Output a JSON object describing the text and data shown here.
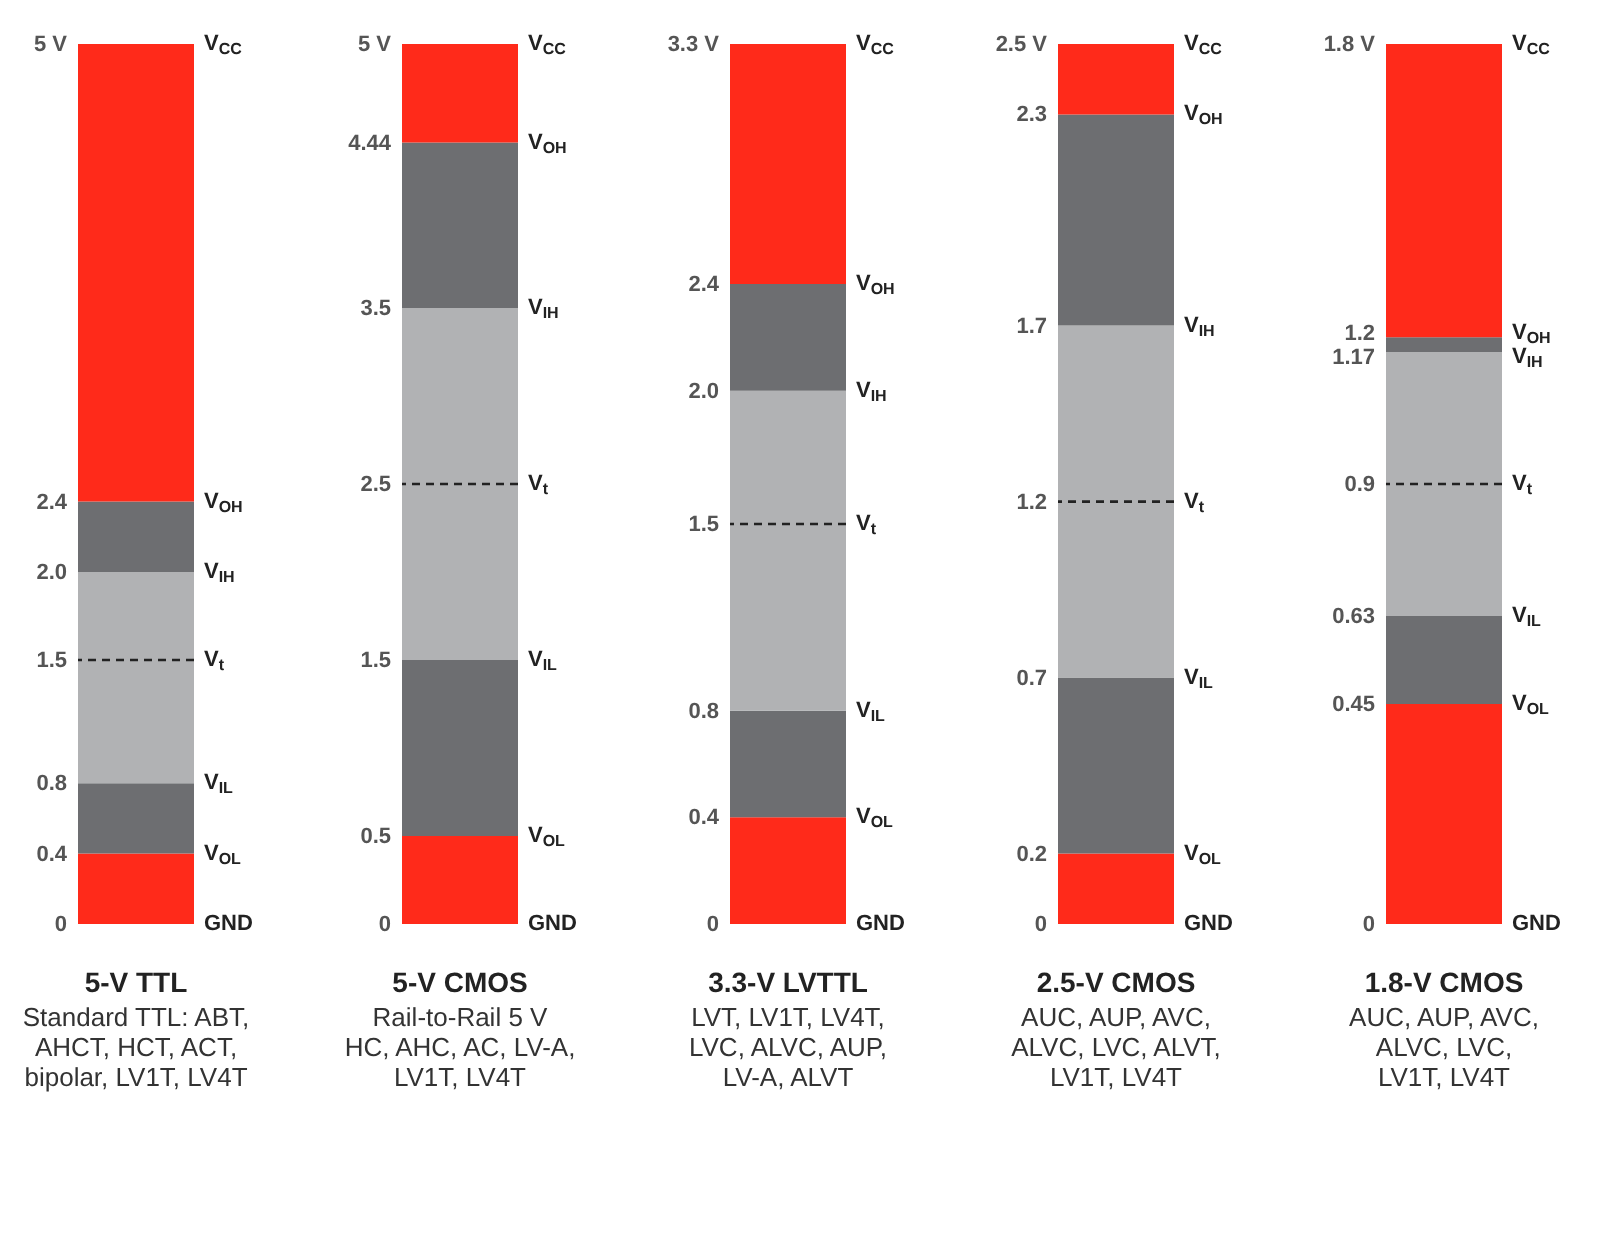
{
  "chart_data": [
    {
      "type": "bar",
      "stacked": true,
      "title": "5-V TTL",
      "subtitle": "Standard TTL: ABT,\nAHCT, HCT, ACT,\nbipolar, LV1T, LV4T",
      "categories": [
        null
      ],
      "tick_labels": "y",
      "series": [
        {
          "color": "#ff2a1a",
          "values": [
            0.4
          ]
        },
        {
          "color": "#6d6e71",
          "values": [
            0.4
          ]
        },
        {
          "color": "#b1b2b4",
          "values": [
            1.2
          ]
        },
        {
          "color": "#6d6e71",
          "values": [
            0.4
          ]
        },
        {
          "color": "#ff2a1a",
          "values": [
            2.6
          ]
        }
      ],
      "ylim": [
        0,
        5
      ],
      "yticks": [
        0,
        0.4,
        0.8,
        1.5,
        {
          "value": 2,
          "label": "2.0"
        },
        2.4,
        {
          "value": 5,
          "label": "5 V"
        }
      ],
      "annotations": [
        "GND",
        "V$_{OL}$",
        "V$_{IL}$",
        "V$_{IH}$",
        "V$_{OH}$",
        "V$_{CC}$"
      ],
      "ref_lines": [
        {
          "axis": "y",
          "value": 1.5,
          "label": "V$_{t}$",
          "line_style": "dashed"
        }
      ]
    },
    {
      "type": "bar",
      "stacked": true,
      "title": "5-V CMOS",
      "subtitle": "Rail-to-Rail 5 V\nHC, AHC, AC, LV-A,\nLV1T, LV4T",
      "categories": [
        null
      ],
      "tick_labels": "y",
      "series": [
        {
          "color": "#ff2a1a",
          "values": [
            0.5
          ]
        },
        {
          "color": "#6d6e71",
          "values": [
            1.0
          ]
        },
        {
          "color": "#b1b2b4",
          "values": [
            2.0
          ]
        },
        {
          "color": "#6d6e71",
          "values": [
            0.94
          ]
        },
        {
          "color": "#ff2a1a",
          "values": [
            0.56
          ]
        }
      ],
      "ylim": [
        0,
        5
      ],
      "yticks": [
        0,
        0.5,
        1.5,
        2.5,
        3.5,
        4.44,
        {
          "value": 5,
          "label": "5 V"
        }
      ],
      "annotations": [
        "GND",
        "V$_{OL}$",
        "V$_{IL}$",
        "V$_{IH}$",
        "V$_{OH}$",
        "V$_{CC}$"
      ],
      "ref_lines": [
        {
          "axis": "y",
          "value": 2.5,
          "label": "V$_{t}$",
          "line_style": "dashed"
        }
      ]
    },
    {
      "type": "bar",
      "stacked": true,
      "title": "3.3-V LVTTL",
      "subtitle": "LVT, LV1T, LV4T,\nLVC, ALVC, AUP,\nLV-A, ALVT",
      "categories": [
        null
      ],
      "tick_labels": "y",
      "series": [
        {
          "color": "#ff2a1a",
          "values": [
            0.4
          ]
        },
        {
          "color": "#6d6e71",
          "values": [
            0.4
          ]
        },
        {
          "color": "#b1b2b4",
          "values": [
            1.2
          ]
        },
        {
          "color": "#6d6e71",
          "values": [
            0.4
          ]
        },
        {
          "color": "#ff2a1a",
          "values": [
            0.9
          ]
        }
      ],
      "ylim": [
        0,
        3.3
      ],
      "yticks": [
        0,
        0.4,
        0.8,
        1.5,
        {
          "value": 2,
          "label": "2.0"
        },
        2.4,
        {
          "value": 3.3,
          "label": "3.3 V"
        }
      ],
      "annotations": [
        "GND",
        "V$_{OL}$",
        "V$_{IL}$",
        "V$_{IH}$",
        "V$_{OH}$",
        "V$_{CC}$"
      ],
      "ref_lines": [
        {
          "axis": "y",
          "value": 1.5,
          "label": "V$_{t}$",
          "line_style": "dashed"
        }
      ]
    },
    {
      "type": "bar",
      "stacked": true,
      "title": "2.5-V CMOS",
      "subtitle": "AUC, AUP, AVC,\nALVC, LVC, ALVT,\nLV1T, LV4T",
      "categories": [
        null
      ],
      "tick_labels": "y",
      "series": [
        {
          "color": "#ff2a1a",
          "values": [
            0.2
          ]
        },
        {
          "color": "#6d6e71",
          "values": [
            0.5
          ]
        },
        {
          "color": "#b1b2b4",
          "values": [
            1.0
          ]
        },
        {
          "color": "#6d6e71",
          "values": [
            0.6
          ]
        },
        {
          "color": "#ff2a1a",
          "values": [
            0.2
          ]
        }
      ],
      "ylim": [
        0,
        2.5
      ],
      "yticks": [
        0,
        0.2,
        0.7,
        1.2,
        1.7,
        2.3,
        {
          "value": 2.5,
          "label": "2.5 V"
        }
      ],
      "annotations": [
        "GND",
        "V$_{OL}$",
        "V$_{IL}$",
        "V$_{IH}$",
        "V$_{OH}$",
        "V$_{CC}$"
      ],
      "ref_lines": [
        {
          "axis": "y",
          "value": 1.2,
          "label": "V$_{t}$",
          "line_style": "dashed"
        }
      ]
    },
    {
      "type": "bar",
      "stacked": true,
      "title": "1.8-V CMOS",
      "subtitle": "AUC, AUP, AVC,\nALVC, LVC,\nLV1T, LV4T",
      "categories": [
        null
      ],
      "tick_labels": "y",
      "series": [
        {
          "color": "#ff2a1a",
          "values": [
            0.45
          ]
        },
        {
          "color": "#6d6e71",
          "values": [
            0.18
          ]
        },
        {
          "color": "#b1b2b4",
          "values": [
            0.54
          ]
        },
        {
          "color": "#6d6e71",
          "values": [
            0.03
          ]
        },
        {
          "color": "#ff2a1a",
          "values": [
            0.6
          ]
        }
      ],
      "ylim": [
        0,
        1.8
      ],
      "yticks": [
        0,
        0.45,
        0.63,
        0.9,
        1.17,
        1.2,
        {
          "value": 1.8,
          "label": "1.8 V"
        }
      ],
      "annotations": [
        "GND",
        "V$_{OL}$",
        "V$_{IL}$",
        "V$_{IH}$",
        "V$_{OH}$",
        "V$_{CC}$"
      ],
      "ref_lines": [
        {
          "axis": "y",
          "value": 0.9,
          "label": "V$_{t}$",
          "line_style": "dashed"
        }
      ]
    }
  ]
}
